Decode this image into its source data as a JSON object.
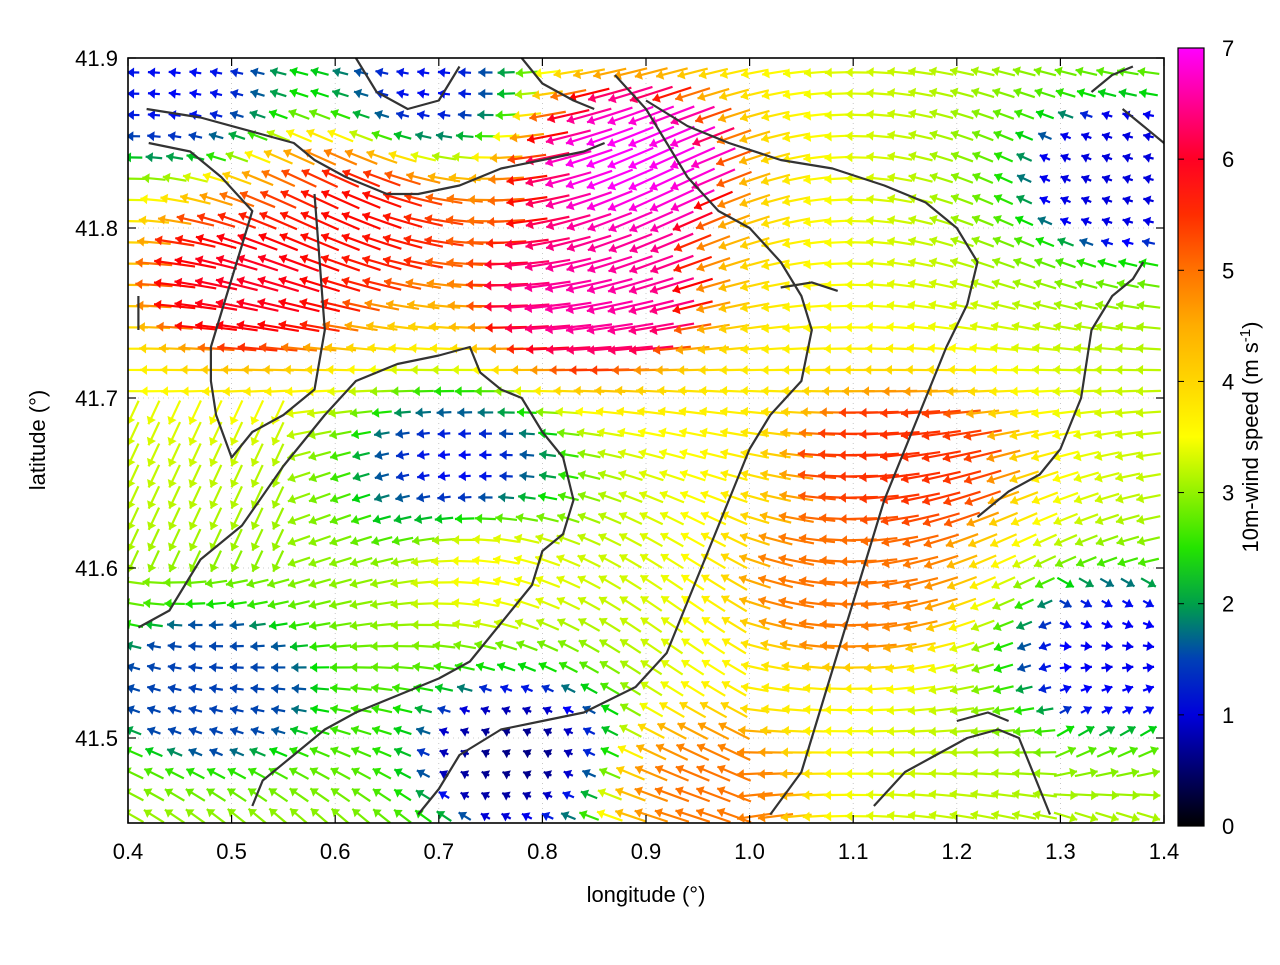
{
  "chart_data": {
    "type": "vector-field",
    "xlabel": "longitude (°)",
    "ylabel": "latitude (°)",
    "xlim": [
      0.4,
      1.4
    ],
    "ylim": [
      41.45,
      41.9
    ],
    "x_ticks": [
      "0.4",
      "0.5",
      "0.6",
      "0.7",
      "0.8",
      "0.9",
      "1.0",
      "1.1",
      "1.2",
      "1.3",
      "1.4"
    ],
    "y_ticks": [
      "41.5",
      "41.6",
      "41.7",
      "41.8",
      "41.9"
    ],
    "grid": "dotted",
    "colorbar": {
      "label_main": "10m-wind speed (m s",
      "label_sup": "-1",
      "label_close": ")",
      "range": [
        0,
        7
      ],
      "ticks": [
        "0",
        "1",
        "2",
        "3",
        "4",
        "5",
        "6",
        "7"
      ],
      "colors": [
        "#000000",
        "#0000ff",
        "#00e000",
        "#ffff00",
        "#ff9f00",
        "#ff0000",
        "#ff00ff"
      ],
      "placement": "right"
    },
    "wind_field": {
      "description_of_pattern": "predominantly easterly flow; strongest (6-7 m/s) near lon 0.85-0.95, lat 41.75-41.88; weak (<1.5 m/s) in the far east and south-centre",
      "arrow_spacing_deg": [
        0.02,
        0.0125
      ],
      "speed_centers": [
        {
          "lon": 0.88,
          "lat": 41.84,
          "speed": 7.0
        },
        {
          "lon": 0.85,
          "lat": 41.76,
          "speed": 6.6
        },
        {
          "lon": 0.52,
          "lat": 41.77,
          "speed": 6.0
        },
        {
          "lon": 0.62,
          "lat": 41.81,
          "speed": 5.8
        },
        {
          "lon": 1.15,
          "lat": 41.66,
          "speed": 5.5
        },
        {
          "lon": 1.1,
          "lat": 41.59,
          "speed": 5.0
        },
        {
          "lon": 0.95,
          "lat": 41.47,
          "speed": 5.0
        },
        {
          "lon": 0.75,
          "lat": 41.6,
          "speed": 3.5
        },
        {
          "lon": 0.72,
          "lat": 41.66,
          "speed": 1.2
        },
        {
          "lon": 0.78,
          "lat": 41.49,
          "speed": 0.6
        },
        {
          "lon": 1.35,
          "lat": 41.55,
          "speed": 1.1
        },
        {
          "lon": 1.36,
          "lat": 41.83,
          "speed": 1.0
        },
        {
          "lon": 0.69,
          "lat": 41.88,
          "speed": 1.2
        },
        {
          "lon": 0.45,
          "lat": 41.88,
          "speed": 1.2
        },
        {
          "lon": 0.48,
          "lat": 41.53,
          "speed": 1.5
        }
      ]
    },
    "contours": [
      [
        [
          0.418,
          41.87
        ],
        [
          0.47,
          41.865
        ],
        [
          0.53,
          41.855
        ],
        [
          0.56,
          41.85
        ],
        [
          0.58,
          41.84
        ],
        [
          0.61,
          41.83
        ],
        [
          0.65,
          41.82
        ],
        [
          0.68,
          41.82
        ],
        [
          0.72,
          41.825
        ],
        [
          0.76,
          41.835
        ],
        [
          0.8,
          41.84
        ],
        [
          0.84,
          41.845
        ],
        [
          0.86,
          41.85
        ]
      ],
      [
        [
          0.42,
          41.85
        ],
        [
          0.46,
          41.845
        ],
        [
          0.49,
          41.83
        ],
        [
          0.52,
          41.81
        ],
        [
          0.51,
          41.79
        ],
        [
          0.5,
          41.77
        ],
        [
          0.49,
          41.75
        ],
        [
          0.48,
          41.73
        ],
        [
          0.48,
          41.71
        ],
        [
          0.485,
          41.69
        ],
        [
          0.5,
          41.665
        ],
        [
          0.52,
          41.68
        ],
        [
          0.55,
          41.69
        ],
        [
          0.58,
          41.705
        ],
        [
          0.59,
          41.74
        ],
        [
          0.585,
          41.78
        ],
        [
          0.58,
          41.82
        ]
      ],
      [
        [
          0.41,
          41.565
        ],
        [
          0.44,
          41.575
        ],
        [
          0.47,
          41.605
        ],
        [
          0.51,
          41.625
        ],
        [
          0.55,
          41.66
        ],
        [
          0.59,
          41.69
        ],
        [
          0.62,
          41.71
        ],
        [
          0.66,
          41.72
        ],
        [
          0.7,
          41.725
        ],
        [
          0.73,
          41.73
        ],
        [
          0.74,
          41.715
        ],
        [
          0.76,
          41.705
        ],
        [
          0.78,
          41.7
        ],
        [
          0.8,
          41.68
        ],
        [
          0.82,
          41.665
        ],
        [
          0.83,
          41.64
        ],
        [
          0.82,
          41.62
        ],
        [
          0.8,
          41.61
        ],
        [
          0.79,
          41.59
        ],
        [
          0.77,
          41.575
        ],
        [
          0.75,
          41.56
        ],
        [
          0.73,
          41.545
        ],
        [
          0.7,
          41.535
        ],
        [
          0.66,
          41.525
        ],
        [
          0.62,
          41.515
        ],
        [
          0.59,
          41.505
        ],
        [
          0.56,
          41.49
        ],
        [
          0.53,
          41.475
        ],
        [
          0.52,
          41.46
        ]
      ],
      [
        [
          0.68,
          41.455
        ],
        [
          0.7,
          41.47
        ],
        [
          0.72,
          41.49
        ],
        [
          0.76,
          41.505
        ],
        [
          0.8,
          41.51
        ],
        [
          0.84,
          41.515
        ],
        [
          0.89,
          41.53
        ],
        [
          0.92,
          41.55
        ],
        [
          0.94,
          41.58
        ],
        [
          0.96,
          41.61
        ],
        [
          0.98,
          41.64
        ],
        [
          1.0,
          41.67
        ],
        [
          1.02,
          41.69
        ],
        [
          1.05,
          41.71
        ],
        [
          1.06,
          41.74
        ],
        [
          1.05,
          41.76
        ],
        [
          1.03,
          41.78
        ],
        [
          1.0,
          41.8
        ],
        [
          0.97,
          41.81
        ],
        [
          0.94,
          41.83
        ],
        [
          0.92,
          41.85
        ],
        [
          0.9,
          41.87
        ],
        [
          0.87,
          41.89
        ]
      ],
      [
        [
          1.02,
          41.455
        ],
        [
          1.05,
          41.48
        ],
        [
          1.07,
          41.52
        ],
        [
          1.09,
          41.56
        ],
        [
          1.11,
          41.6
        ],
        [
          1.13,
          41.64
        ],
        [
          1.15,
          41.67
        ],
        [
          1.17,
          41.7
        ],
        [
          1.19,
          41.73
        ],
        [
          1.21,
          41.755
        ],
        [
          1.22,
          41.78
        ],
        [
          1.2,
          41.8
        ],
        [
          1.17,
          41.815
        ],
        [
          1.13,
          41.825
        ],
        [
          1.08,
          41.835
        ],
        [
          1.03,
          41.84
        ],
        [
          0.98,
          41.85
        ],
        [
          0.94,
          41.86
        ],
        [
          0.9,
          41.875
        ]
      ],
      [
        [
          0.38,
          41.56
        ],
        [
          0.36,
          41.53
        ]
      ],
      [
        [
          1.12,
          41.46
        ],
        [
          1.15,
          41.48
        ],
        [
          1.18,
          41.49
        ],
        [
          1.21,
          41.5
        ],
        [
          1.24,
          41.505
        ],
        [
          1.26,
          41.5
        ],
        [
          1.28,
          41.47
        ],
        [
          1.29,
          41.455
        ]
      ],
      [
        [
          1.2,
          41.51
        ],
        [
          1.23,
          41.515
        ],
        [
          1.25,
          41.51
        ]
      ],
      [
        [
          1.22,
          41.63
        ],
        [
          1.25,
          41.645
        ],
        [
          1.28,
          41.655
        ],
        [
          1.3,
          41.67
        ],
        [
          1.32,
          41.7
        ],
        [
          1.33,
          41.74
        ],
        [
          1.35,
          41.76
        ],
        [
          1.37,
          41.77
        ],
        [
          1.38,
          41.78
        ]
      ],
      [
        [
          1.36,
          41.87
        ],
        [
          1.38,
          41.86
        ],
        [
          1.4,
          41.85
        ]
      ],
      [
        [
          0.62,
          41.9
        ],
        [
          0.64,
          41.88
        ],
        [
          0.67,
          41.87
        ],
        [
          0.7,
          41.875
        ],
        [
          0.72,
          41.895
        ]
      ],
      [
        [
          1.03,
          41.765
        ],
        [
          1.06,
          41.768
        ],
        [
          1.085,
          41.763
        ]
      ],
      [
        [
          0.78,
          41.9
        ],
        [
          0.8,
          41.885
        ],
        [
          0.83,
          41.875
        ],
        [
          0.85,
          41.87
        ]
      ],
      [
        [
          0.41,
          41.76
        ],
        [
          0.41,
          41.74
        ]
      ],
      [
        [
          1.33,
          41.88
        ],
        [
          1.35,
          41.89
        ],
        [
          1.37,
          41.895
        ]
      ]
    ]
  }
}
